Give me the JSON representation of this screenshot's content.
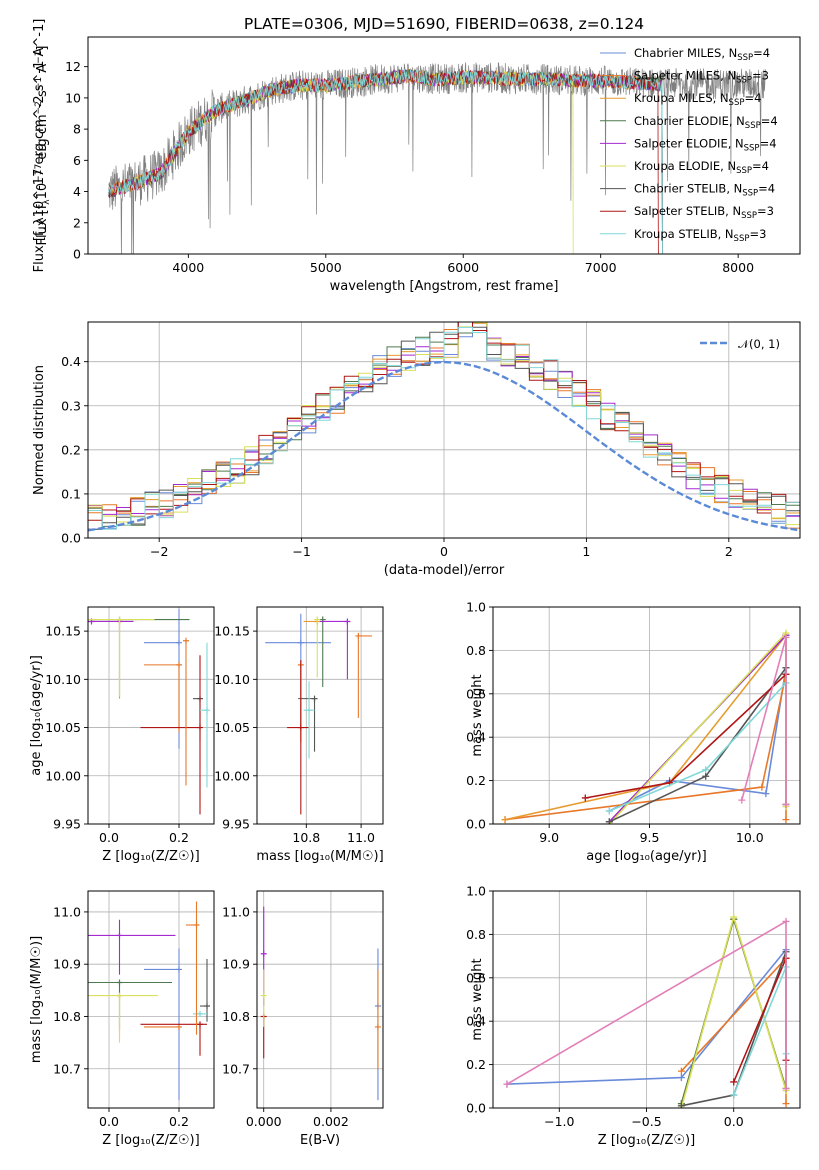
{
  "colors": {
    "Chabrier MILES": "#6a8bd9",
    "Salpeter MILES": "#e8782a",
    "Kroupa MILES": "#e79b2e",
    "Chabrier ELODIE": "#4f7a4f",
    "Salpeter ELODIE": "#a52ad1",
    "Kroupa ELODIE": "#d9e05a",
    "Chabrier STELIB": "#555555",
    "Salpeter STELIB": "#b01515",
    "Kroupa STELIB": "#80d8d8"
  },
  "chart_data": [
    {
      "id": "spectrum",
      "type": "line",
      "title": "PLATE=0306, MJD=51690, FIBERID=0638, z=0.124",
      "xlabel": "wavelength [Angstrom, rest frame]",
      "ylabel": "Flux [f_λ10^-17 erg cm^-2 s^-1 A^-1]",
      "xlim": [
        3270,
        8450
      ],
      "ylim": [
        0,
        13.9
      ],
      "xticks": [
        4000,
        5000,
        6000,
        7000,
        8000
      ],
      "yticks": [
        0,
        2,
        4,
        6,
        8,
        10,
        12
      ],
      "legend_position": "right",
      "legend": [
        {
          "name": "Chabrier MILES",
          "nssp": "4"
        },
        {
          "name": "Salpeter MILES",
          "nssp": "3"
        },
        {
          "name": "Kroupa MILES",
          "nssp": "4"
        },
        {
          "name": "Chabrier ELODIE",
          "nssp": "4"
        },
        {
          "name": "Salpeter ELODIE",
          "nssp": "4"
        },
        {
          "name": "Kroupa ELODIE",
          "nssp": "4"
        },
        {
          "name": "Chabrier STELIB",
          "nssp": "4"
        },
        {
          "name": "Salpeter STELIB",
          "nssp": "3"
        },
        {
          "name": "Kroupa STELIB",
          "nssp": "3"
        }
      ],
      "continuum": {
        "x": [
          3420,
          3600,
          3800,
          4000,
          4200,
          4400,
          4600,
          4800,
          5000,
          5200,
          5400,
          5600,
          5800,
          6000,
          6200,
          6400,
          6600,
          6800,
          7000,
          7200,
          7400
        ],
        "y": [
          4.0,
          4.5,
          5.2,
          7.8,
          9.2,
          9.8,
          10.5,
          10.8,
          10.8,
          11.0,
          11.2,
          11.4,
          11.2,
          11.3,
          11.3,
          11.2,
          11.2,
          11.1,
          11.1,
          11.0,
          10.9
        ]
      },
      "data_series": {
        "name": "data",
        "color": "#808080",
        "xrange": [
          3420,
          8200
        ]
      }
    },
    {
      "id": "residuals",
      "type": "line",
      "xlabel": "(data-model)/error",
      "ylabel": "Normed distribution",
      "xlim": [
        -2.5,
        2.5
      ],
      "ylim": [
        0,
        0.49
      ],
      "xticks": [
        -2,
        -1,
        0,
        1,
        2
      ],
      "yticks": [
        0.0,
        0.1,
        0.2,
        0.3,
        0.4
      ],
      "grid": true,
      "legend_position": "top-right",
      "gaussian_label": "𝒩(0, 1)",
      "gaussian_color": "#5b8ad6"
    },
    {
      "id": "age_vs_Z",
      "type": "scatter",
      "xlabel": "Z [log₁₀(Z/Z☉)]",
      "ylabel": "age  [log₁₀(age/yr)]",
      "xlim": [
        -0.06,
        0.3
      ],
      "ylim": [
        9.95,
        10.175
      ],
      "xticks": [
        0.0,
        0.2
      ],
      "yticks": [
        9.95,
        10.0,
        10.05,
        10.1,
        10.15
      ],
      "grid": true,
      "points": [
        {
          "model": "Chabrier MILES",
          "x": 0.2,
          "xerr": [
            0.1,
            0.0
          ],
          "y": 10.138,
          "yerr": [
            0.11,
            0.035
          ]
        },
        {
          "model": "Salpeter MILES",
          "x": 0.2,
          "xerr": [
            0.1,
            0.0
          ],
          "y": 10.115,
          "yerr": [
            0.07,
            0.0
          ]
        },
        {
          "model": "Kroupa MILES",
          "x": 0.03,
          "xerr": [
            0.0,
            0.0
          ],
          "y": 10.16,
          "yerr": [
            0.08,
            0.0
          ]
        },
        {
          "model": "Chabrier ELODIE",
          "x": 0.03,
          "xerr": [
            0.1,
            0.2
          ],
          "y": 10.162,
          "yerr": [
            0.08,
            0.0
          ]
        },
        {
          "model": "Salpeter ELODIE",
          "x": -0.05,
          "xerr": [
            0.0,
            0.12
          ],
          "y": 10.16,
          "yerr": [
            0.0,
            0.0
          ]
        },
        {
          "model": "Kroupa ELODIE",
          "x": 0.03,
          "xerr": [
            0.1,
            0.1
          ],
          "y": 10.162,
          "yerr": [
            0.08,
            0.0
          ]
        },
        {
          "model": "Chabrier STELIB",
          "x": 0.26,
          "xerr": [
            0.02,
            0.0
          ],
          "y": 10.08,
          "yerr": [
            0.045,
            0.0
          ]
        },
        {
          "model": "Salpeter STELIB",
          "x": 0.26,
          "xerr": [
            0.17,
            0.0
          ],
          "y": 10.05,
          "yerr": [
            0.09,
            0.075
          ]
        },
        {
          "model": "Kroupa STELIB",
          "x": 0.28,
          "xerr": [
            0.02,
            0.0
          ],
          "y": 10.068,
          "yerr": [
            0.08,
            0.07
          ]
        },
        {
          "model": "Salpeter MILES",
          "x": 0.22,
          "xerr": [
            0.0,
            0.0
          ],
          "y": 10.14,
          "yerr": [
            0.15,
            0.0
          ]
        }
      ]
    },
    {
      "id": "age_vs_mass",
      "type": "scatter",
      "xlabel": "mass [log₁₀(M/M☉)]",
      "ylabel": "",
      "xlim": [
        10.62,
        11.08
      ],
      "ylim": [
        9.95,
        10.175
      ],
      "xticks": [
        10.8,
        11.0
      ],
      "yticks": [
        9.95,
        10.0,
        10.05,
        10.1,
        10.15
      ],
      "grid": true,
      "points": [
        {
          "model": "Chabrier MILES",
          "x": 10.78,
          "xerr": [
            0.13,
            0.11
          ],
          "y": 10.138,
          "yerr": [
            0.085,
            0.03
          ]
        },
        {
          "model": "Salpeter MILES",
          "x": 10.78,
          "xerr": [
            0.0,
            0.0
          ],
          "y": 10.115,
          "yerr": [
            0.08,
            0.0
          ]
        },
        {
          "model": "Kroupa MILES",
          "x": 10.84,
          "xerr": [
            0.05,
            0.0
          ],
          "y": 10.16,
          "yerr": [
            0.0,
            0.0
          ]
        },
        {
          "model": "Chabrier ELODIE",
          "x": 10.86,
          "xerr": [
            0.0,
            0.0
          ],
          "y": 10.162,
          "yerr": [
            0.07,
            0.0
          ]
        },
        {
          "model": "Salpeter ELODIE",
          "x": 10.95,
          "xerr": [
            0.1,
            0.0
          ],
          "y": 10.16,
          "yerr": [
            0.06,
            0.0
          ]
        },
        {
          "model": "Kroupa ELODIE",
          "x": 10.84,
          "xerr": [
            0.0,
            0.0
          ],
          "y": 10.162,
          "yerr": [
            0.06,
            0.0
          ]
        },
        {
          "model": "Chabrier STELIB",
          "x": 10.83,
          "xerr": [
            0.06,
            0.0
          ],
          "y": 10.08,
          "yerr": [
            0.055,
            0.0
          ]
        },
        {
          "model": "Salpeter STELIB",
          "x": 10.78,
          "xerr": [
            0.05,
            0.03
          ],
          "y": 10.05,
          "yerr": [
            0.09,
            0.07
          ]
        },
        {
          "model": "Kroupa STELIB",
          "x": 10.81,
          "xerr": [
            0.02,
            0.02
          ],
          "y": 10.068,
          "yerr": [
            0.05,
            0.03
          ]
        },
        {
          "model": "Salpeter MILES",
          "x": 10.99,
          "xerr": [
            0.0,
            0.05
          ],
          "y": 10.145,
          "yerr": [
            0.085,
            0.0
          ]
        }
      ]
    },
    {
      "id": "weight_vs_age",
      "type": "line",
      "xlabel": "age  [log₁₀(age/yr)]",
      "ylabel": "mass weight",
      "xlim": [
        8.72,
        10.25
      ],
      "ylim": [
        0,
        1.0
      ],
      "xticks": [
        9.0,
        9.5,
        10.0
      ],
      "yticks": [
        0.0,
        0.2,
        0.4,
        0.6,
        0.8,
        1.0
      ],
      "grid": true,
      "series": [
        {
          "model": "Chabrier MILES",
          "x": [
            9.3,
            9.6,
            10.08,
            10.18
          ],
          "y": [
            0.06,
            0.2,
            0.14,
            0.72
          ]
        },
        {
          "model": "Salpeter MILES",
          "x": [
            8.78,
            10.06,
            10.18,
            10.18
          ],
          "y": [
            0.02,
            0.17,
            0.69,
            0.02
          ]
        },
        {
          "model": "Kroupa MILES",
          "x": [
            8.78,
            9.6,
            10.18,
            10.18
          ],
          "y": [
            0.02,
            0.19,
            0.87,
            0.09
          ]
        },
        {
          "model": "Chabrier ELODIE",
          "x": [
            9.3,
            10.18,
            10.18
          ],
          "y": [
            0.01,
            0.87,
            0.09
          ]
        },
        {
          "model": "Salpeter ELODIE",
          "x": [
            9.3,
            10.18,
            10.18
          ],
          "y": [
            0.01,
            0.87,
            0.09
          ]
        },
        {
          "model": "Kroupa ELODIE",
          "x": [
            9.3,
            10.18,
            10.18
          ],
          "y": [
            0.0,
            0.88,
            0.08
          ]
        },
        {
          "model": "Chabrier STELIB",
          "x": [
            9.3,
            9.78,
            10.18
          ],
          "y": [
            0.01,
            0.22,
            0.72
          ]
        },
        {
          "model": "Salpeter STELIB",
          "x": [
            9.18,
            9.6,
            10.18
          ],
          "y": [
            0.12,
            0.19,
            0.69
          ]
        },
        {
          "model": "Kroupa STELIB",
          "x": [
            9.3,
            9.78,
            10.18
          ],
          "y": [
            0.06,
            0.25,
            0.65
          ]
        },
        {
          "model": "pink",
          "x": [
            9.96,
            10.18,
            10.18
          ],
          "y": [
            0.11,
            0.86,
            0.09
          ]
        }
      ]
    },
    {
      "id": "mass_vs_Z",
      "type": "scatter",
      "xlabel": "Z [log₁₀(Z/Z☉)]",
      "ylabel": "mass [log₁₀(M/M☉)]",
      "xlim": [
        -0.06,
        0.3
      ],
      "ylim": [
        10.625,
        11.04
      ],
      "xticks": [
        0.0,
        0.2
      ],
      "yticks": [
        10.7,
        10.8,
        10.9,
        11.0
      ],
      "grid": true,
      "points": [
        {
          "model": "Chabrier MILES",
          "x": 0.2,
          "xerr": [
            0.1,
            0.0
          ],
          "y": 10.89,
          "yerr": [
            0.25,
            0.04
          ]
        },
        {
          "model": "Salpeter MILES",
          "x": 0.2,
          "xerr": [
            0.1,
            0.0
          ],
          "y": 10.78,
          "yerr": [
            0.0,
            0.0
          ]
        },
        {
          "model": "Kroupa MILES",
          "x": 0.03,
          "xerr": [
            0.0,
            0.0
          ],
          "y": 10.84,
          "yerr": [
            0.08,
            0.0
          ]
        },
        {
          "model": "Chabrier ELODIE",
          "x": 0.03,
          "xerr": [
            0.1,
            0.15
          ],
          "y": 10.865,
          "yerr": [
            0.09,
            0.0
          ]
        },
        {
          "model": "Salpeter ELODIE",
          "x": 0.03,
          "xerr": [
            0.09,
            0.16
          ],
          "y": 10.955,
          "yerr": [
            0.075,
            0.03
          ]
        },
        {
          "model": "Kroupa ELODIE",
          "x": 0.03,
          "xerr": [
            0.1,
            0.11
          ],
          "y": 10.84,
          "yerr": [
            0.09,
            0.0
          ]
        },
        {
          "model": "Chabrier STELIB",
          "x": 0.28,
          "xerr": [
            0.02,
            0.0
          ],
          "y": 10.82,
          "yerr": [
            0.03,
            0.09
          ]
        },
        {
          "model": "Salpeter STELIB",
          "x": 0.26,
          "xerr": [
            0.17,
            0.02
          ],
          "y": 10.785,
          "yerr": [
            0.06,
            0.0
          ]
        },
        {
          "model": "Kroupa STELIB",
          "x": 0.26,
          "xerr": [
            0.02,
            0.02
          ],
          "y": 10.805,
          "yerr": [
            0.0,
            0.0
          ]
        },
        {
          "model": "Salpeter MILES",
          "x": 0.25,
          "xerr": [
            0.03,
            0.0
          ],
          "y": 10.975,
          "yerr": [
            0.21,
            0.045
          ]
        }
      ]
    },
    {
      "id": "mass_vs_EBV",
      "type": "scatter",
      "xlabel": "E(B-V)",
      "ylabel": "",
      "xlim": [
        -0.0002,
        0.00355
      ],
      "ylim": [
        10.625,
        11.04
      ],
      "xticks": [
        0.0,
        0.002
      ],
      "yticks": [
        10.7,
        10.8,
        10.9,
        11.0
      ],
      "grid": true,
      "points": [
        {
          "model": "Salpeter ELODIE",
          "x": 0.0,
          "xerr": [
            0.0,
            0.0
          ],
          "y": 10.92,
          "yerr": [
            0.1,
            0.09
          ]
        },
        {
          "model": "Salpeter STELIB",
          "x": 0.0,
          "xerr": [
            0.0,
            0.0
          ],
          "y": 10.8,
          "yerr": [
            0.08,
            0.0
          ]
        },
        {
          "model": "Kroupa ELODIE",
          "x": 0.0,
          "xerr": [
            0.0,
            0.0
          ],
          "y": 10.84,
          "yerr": [
            0.06,
            0.05
          ]
        },
        {
          "model": "Chabrier MILES",
          "x": 0.0034,
          "xerr": [
            0.0,
            0.0
          ],
          "y": 10.82,
          "yerr": [
            0.18,
            0.11
          ]
        },
        {
          "model": "Salpeter MILES",
          "x": 0.0034,
          "xerr": [
            0.0,
            0.0
          ],
          "y": 10.78,
          "yerr": [
            0.08,
            0.11
          ]
        }
      ]
    },
    {
      "id": "weight_vs_Z",
      "type": "line",
      "xlabel": "Z [log₁₀(Z/Z☉)]",
      "ylabel": "mass weight",
      "xlim": [
        -1.38,
        0.38
      ],
      "ylim": [
        0,
        1.0
      ],
      "xticks": [
        -1.0,
        -0.5,
        0.0
      ],
      "yticks": [
        0.0,
        0.2,
        0.4,
        0.6,
        0.8,
        1.0
      ],
      "grid": true,
      "series": [
        {
          "model": "Chabrier MILES",
          "x": [
            -1.3,
            -0.3,
            0.3
          ],
          "y": [
            0.11,
            0.14,
            0.73
          ]
        },
        {
          "model": "Salpeter MILES",
          "x": [
            -0.3,
            0.3,
            0.3
          ],
          "y": [
            0.17,
            0.69,
            0.02
          ]
        },
        {
          "model": "Kroupa MILES",
          "x": [
            -0.3,
            0.0,
            0.3
          ],
          "y": [
            0.02,
            0.87,
            0.09
          ]
        },
        {
          "model": "Chabrier ELODIE",
          "x": [
            -0.3,
            0.0,
            0.3
          ],
          "y": [
            0.02,
            0.87,
            0.09
          ]
        },
        {
          "model": "Kroupa ELODIE",
          "x": [
            -0.3,
            0.0,
            0.3
          ],
          "y": [
            0.0,
            0.88,
            0.08
          ]
        },
        {
          "model": "Chabrier STELIB",
          "x": [
            -0.3,
            0.0,
            0.3
          ],
          "y": [
            0.01,
            0.06,
            0.72
          ]
        },
        {
          "model": "Salpeter STELIB",
          "x": [
            0.0,
            0.3,
            0.3
          ],
          "y": [
            0.12,
            0.69,
            0.22
          ]
        },
        {
          "model": "Kroupa STELIB",
          "x": [
            0.0,
            0.3,
            0.3
          ],
          "y": [
            0.06,
            0.65,
            0.25
          ]
        },
        {
          "model": "pink",
          "x": [
            -1.3,
            0.3,
            0.3
          ],
          "y": [
            0.11,
            0.86,
            0.09
          ]
        }
      ]
    }
  ]
}
